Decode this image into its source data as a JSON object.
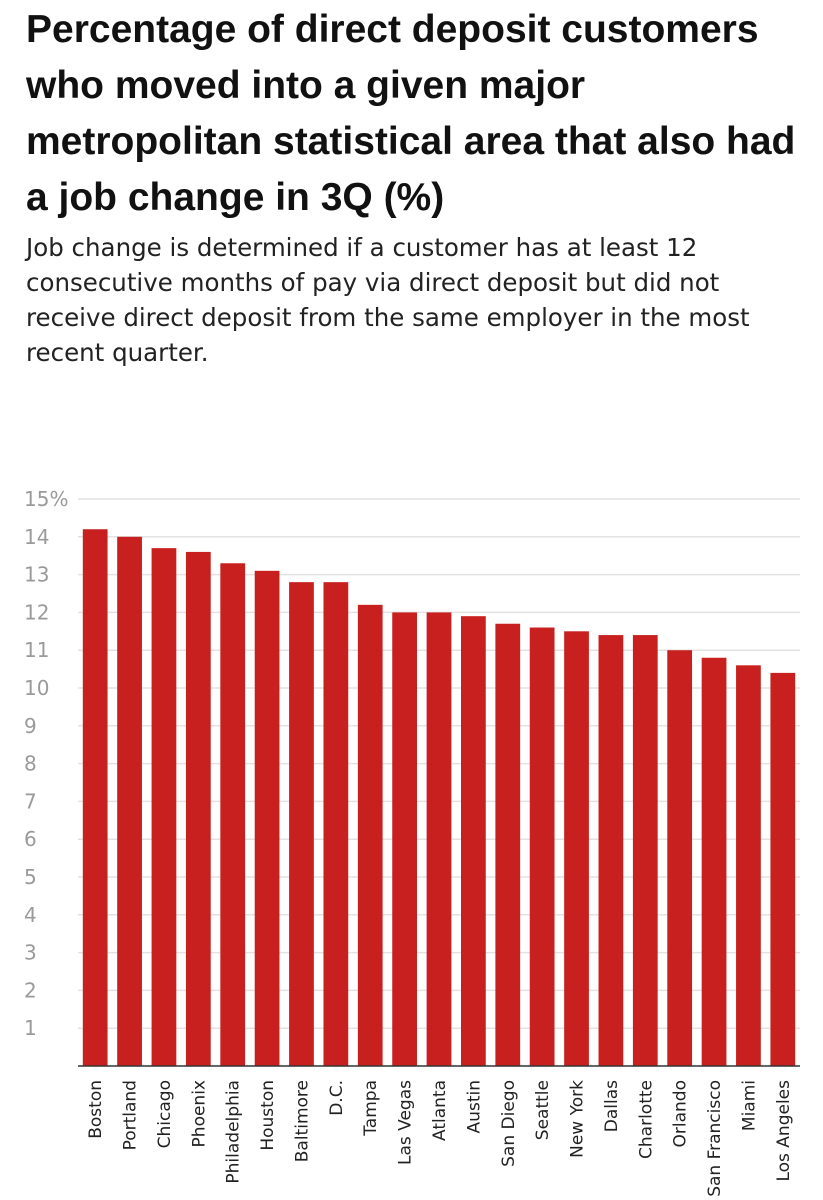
{
  "title": "Percentage of direct deposit customers who moved into a given major metropolitan statistical area that also had a job change in 3Q (%)",
  "subtitle": "Job change is determined if a customer has at least 12 consecutive months of pay via direct deposit but did not receive direct deposit from the same employer in the most recent quarter.",
  "colors": {
    "bar": "#c8201e",
    "grid": "#e2e2e2",
    "axis": "#333333"
  },
  "chart_data": {
    "type": "bar",
    "title": "Percentage of direct deposit customers who moved into a given major metropolitan statistical area that also had a job change in 3Q (%)",
    "subtitle": "Job change is determined if a customer has at least 12 consecutive months of pay via direct deposit but did not receive direct deposit from the same employer in the most recent quarter.",
    "xlabel": "",
    "ylabel": "",
    "ylim": [
      0,
      15
    ],
    "yticks": [
      1,
      2,
      3,
      4,
      5,
      6,
      7,
      8,
      9,
      10,
      11,
      12,
      13,
      14,
      15
    ],
    "ytick_labels": [
      "1",
      "2",
      "3",
      "4",
      "5",
      "6",
      "7",
      "8",
      "9",
      "10",
      "11",
      "12",
      "13",
      "14",
      "15%"
    ],
    "grid": true,
    "categories": [
      "Boston",
      "Portland",
      "Chicago",
      "Phoenix",
      "Philadelphia",
      "Houston",
      "Baltimore",
      "D.C.",
      "Tampa",
      "Las Vegas",
      "Atlanta",
      "Austin",
      "San Diego",
      "Seattle",
      "New York",
      "Dallas",
      "Charlotte",
      "Orlando",
      "San Francisco",
      "Miami",
      "Los Angeles"
    ],
    "values": [
      14.2,
      14.0,
      13.7,
      13.6,
      13.3,
      13.1,
      12.8,
      12.8,
      12.2,
      12.0,
      12.0,
      11.9,
      11.7,
      11.6,
      11.5,
      11.4,
      11.4,
      11.0,
      10.8,
      10.6,
      10.4
    ]
  }
}
